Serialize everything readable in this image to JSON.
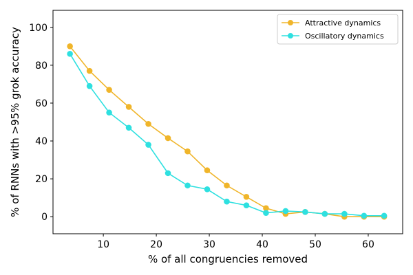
{
  "chart_data": {
    "type": "line",
    "title": "",
    "xlabel": "% of all congruencies removed",
    "ylabel": "% of RNNs with >95% grok accuracy",
    "xlim": [
      0.5,
      66.5
    ],
    "ylim": [
      -9,
      109
    ],
    "xticks": [
      10,
      20,
      30,
      40,
      50,
      60
    ],
    "yticks": [
      0,
      20,
      40,
      60,
      80,
      100
    ],
    "grid": false,
    "legend_position": "top-right",
    "x": [
      3.7,
      7.4,
      11.1,
      14.8,
      18.5,
      22.2,
      25.9,
      29.6,
      33.3,
      37.0,
      40.7,
      44.4,
      48.1,
      51.8,
      55.5,
      59.2,
      63.0
    ],
    "series": [
      {
        "name": "Attractive dynamics",
        "color": "#f0b52a",
        "values": [
          90,
          77,
          67,
          58,
          49,
          41.5,
          34.5,
          24.5,
          16.5,
          10.5,
          4.5,
          1.5,
          2.5,
          1.5,
          0,
          0,
          0
        ]
      },
      {
        "name": "Oscillatory dynamics",
        "color": "#2ee0e0",
        "values": [
          86,
          69,
          55,
          47,
          38,
          23,
          16.5,
          14.5,
          8,
          6,
          2,
          3,
          2.5,
          1.5,
          1.5,
          0.5,
          0.5
        ]
      }
    ]
  }
}
